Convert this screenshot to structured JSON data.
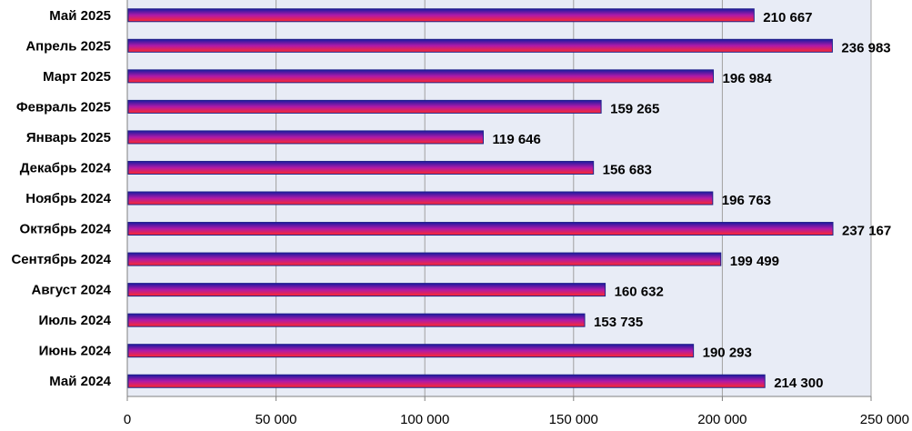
{
  "chart_data": {
    "type": "bar",
    "orientation": "horizontal",
    "categories": [
      "Май 2024",
      "Июнь 2024",
      "Июль 2024",
      "Август 2024",
      "Сентябрь 2024",
      "Октябрь 2024",
      "Ноябрь 2024",
      "Декабрь 2024",
      "Январь 2025",
      "Февраль 2025",
      "Март 2025",
      "Апрель 2025",
      "Май 2025"
    ],
    "values": [
      214300,
      190293,
      153735,
      160632,
      199499,
      237167,
      196763,
      156683,
      119646,
      159265,
      196984,
      236983,
      210667
    ],
    "value_labels": [
      "214 300",
      "190 293",
      "153 735",
      "160 632",
      "199 499",
      "237 167",
      "196 763",
      "156 683",
      "119 646",
      "159 265",
      "196 984",
      "236 983",
      "210 667"
    ],
    "x_ticks": [
      "0",
      "50 000",
      "100 000",
      "150 000",
      "200 000",
      "250 000"
    ],
    "xlim": [
      0,
      250000
    ],
    "tick_step": 50000,
    "grid": "vertical",
    "legend": "none",
    "colors": {
      "plot_background": "#e8ecf6",
      "bar_top": "#1a1aa0",
      "bar_mid": "#b01aa8",
      "bar_bottom": "#ff2a2a",
      "bar_border": "#20208a",
      "gridline": "#a0a0a0",
      "axis": "#808080"
    }
  }
}
